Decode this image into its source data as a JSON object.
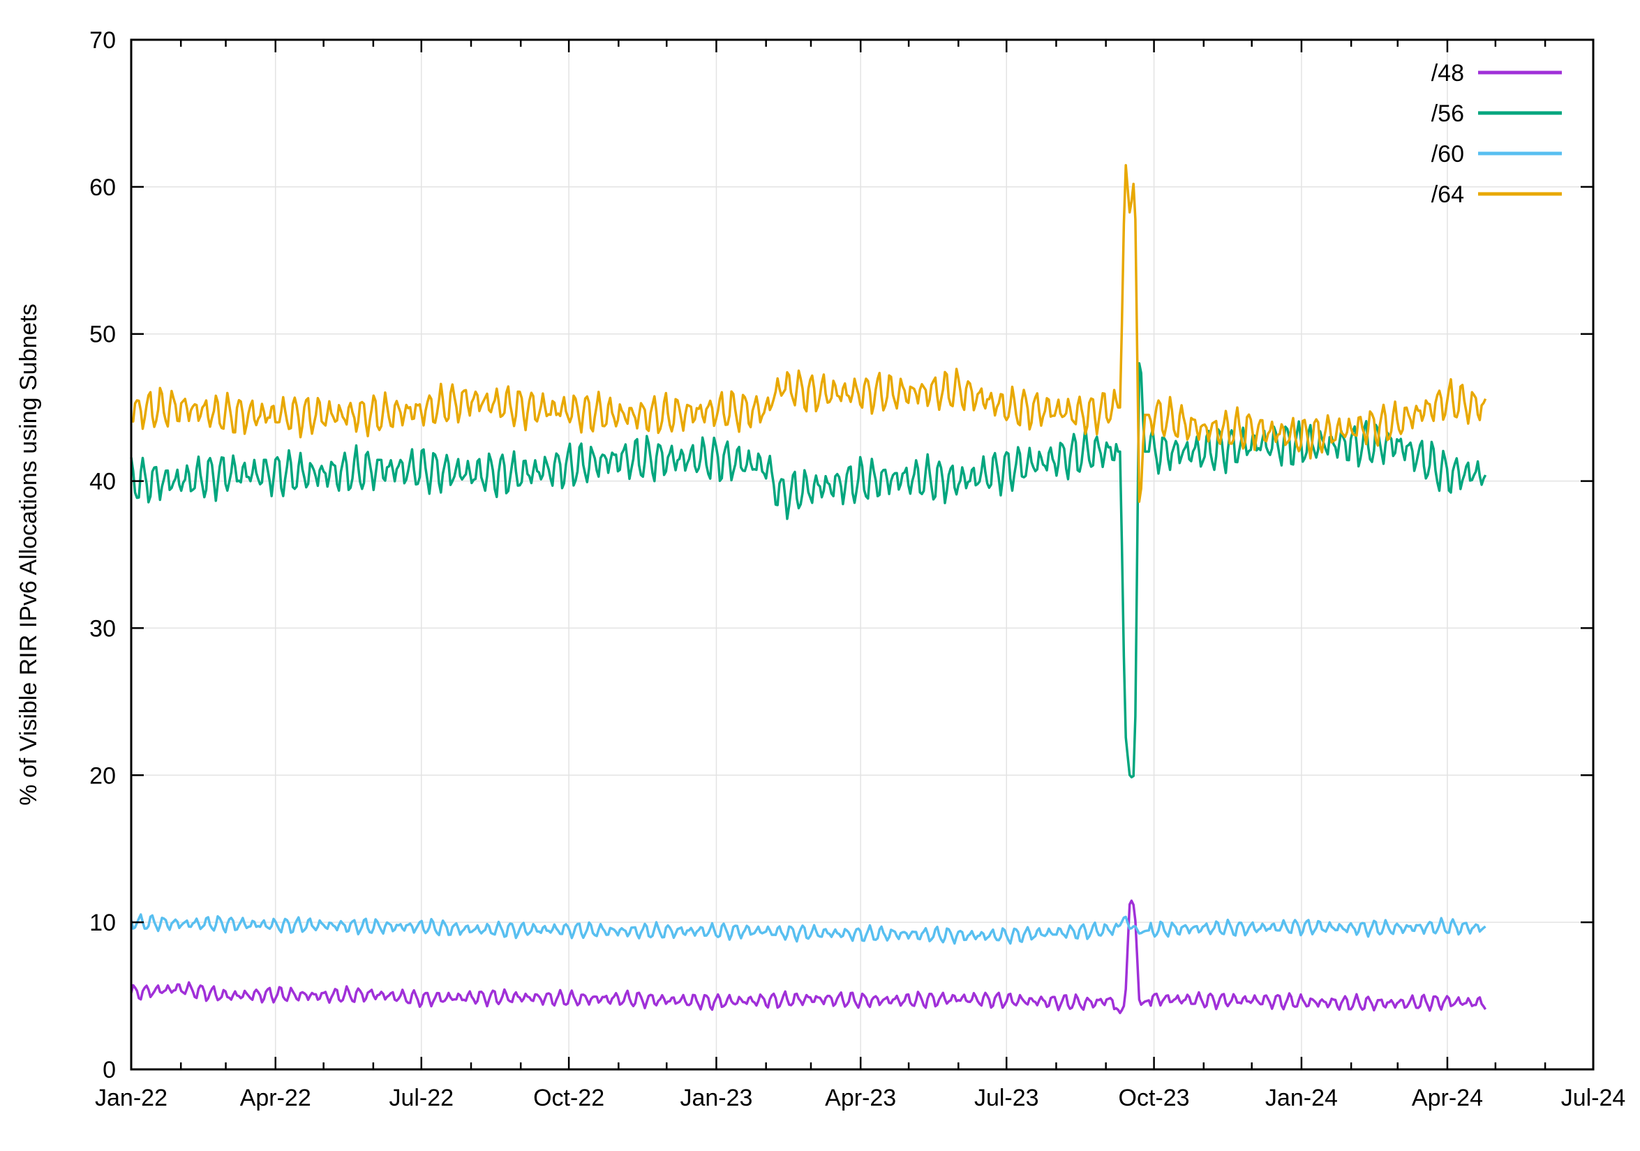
{
  "chart_data": {
    "type": "line",
    "title": "",
    "xlabel": "",
    "ylabel": "% of Visible RIR IPv6 Allocations using Subnets",
    "xlim": [
      "2022-01-01",
      "2024-07-01"
    ],
    "ylim": [
      0,
      70
    ],
    "grid": true,
    "legend_position": "top-right",
    "x_tick_labels": [
      "Jan-22",
      "Apr-22",
      "Jul-22",
      "Oct-22",
      "Jan-23",
      "Apr-23",
      "Jul-23",
      "Oct-23",
      "Jan-24",
      "Apr-24",
      "Jul-24"
    ],
    "y_tick_labels": [
      "0",
      "10",
      "20",
      "30",
      "40",
      "50",
      "60",
      "70"
    ],
    "x": [
      "2022-01-01",
      "2022-02-01",
      "2022-03-01",
      "2022-04-01",
      "2022-05-01",
      "2022-06-01",
      "2022-07-01",
      "2022-08-01",
      "2022-09-01",
      "2022-10-01",
      "2022-11-01",
      "2022-12-01",
      "2023-01-01",
      "2023-02-01",
      "2023-02-10",
      "2023-03-01",
      "2023-04-01",
      "2023-05-01",
      "2023-06-01",
      "2023-07-01",
      "2023-08-01",
      "2023-08-20",
      "2023-09-05",
      "2023-09-10",
      "2023-09-13",
      "2023-09-16",
      "2023-09-19",
      "2023-09-22",
      "2023-09-25",
      "2023-10-01",
      "2023-11-01",
      "2023-12-01",
      "2024-01-01",
      "2024-02-01",
      "2024-03-01",
      "2024-04-01",
      "2024-04-25"
    ],
    "series": [
      {
        "name": "/48",
        "color": "#a030d8",
        "values": [
          5.2,
          5.5,
          5.0,
          5.1,
          5.0,
          5.1,
          4.8,
          4.9,
          4.9,
          4.8,
          4.8,
          4.7,
          4.6,
          4.7,
          4.7,
          4.8,
          4.7,
          4.7,
          4.8,
          4.7,
          4.6,
          4.5,
          4.7,
          3.8,
          4.5,
          11.7,
          11.0,
          4.3,
          4.6,
          4.8,
          4.7,
          4.7,
          4.6,
          4.5,
          4.5,
          4.6,
          4.5
        ]
      },
      {
        "name": "/56",
        "color": "#00a67e",
        "values": [
          40.0,
          40.0,
          40.5,
          40.5,
          40.5,
          40.8,
          40.8,
          40.5,
          40.5,
          41.0,
          41.5,
          41.5,
          41.5,
          41.0,
          39.0,
          39.5,
          40.0,
          40.2,
          40.0,
          40.8,
          41.5,
          42.0,
          42.0,
          42.0,
          23.0,
          19.8,
          20.0,
          50.0,
          42.0,
          42.0,
          42.0,
          42.5,
          42.5,
          42.5,
          42.5,
          40.5,
          40.5
        ]
      },
      {
        "name": "/60",
        "color": "#58bff0",
        "values": [
          10.0,
          9.9,
          9.9,
          9.8,
          9.8,
          9.7,
          9.7,
          9.5,
          9.5,
          9.5,
          9.4,
          9.4,
          9.4,
          9.4,
          9.3,
          9.3,
          9.2,
          9.2,
          9.1,
          9.1,
          9.3,
          9.4,
          9.5,
          9.8,
          10.5,
          9.5,
          9.8,
          9.2,
          9.4,
          9.5,
          9.6,
          9.6,
          9.7,
          9.6,
          9.6,
          9.7,
          9.6
        ]
      },
      {
        "name": "/64",
        "color": "#e8a800",
        "values": [
          44.8,
          45.0,
          44.5,
          44.5,
          44.5,
          44.5,
          44.8,
          45.5,
          45.0,
          44.8,
          44.5,
          44.5,
          44.8,
          44.8,
          46.5,
          46.0,
          46.0,
          46.0,
          46.2,
          45.0,
          44.8,
          44.5,
          45.0,
          45.0,
          62.0,
          58.0,
          61.0,
          37.0,
          44.5,
          44.5,
          43.5,
          43.5,
          43.0,
          43.5,
          44.0,
          45.5,
          45.0
        ]
      }
    ]
  }
}
